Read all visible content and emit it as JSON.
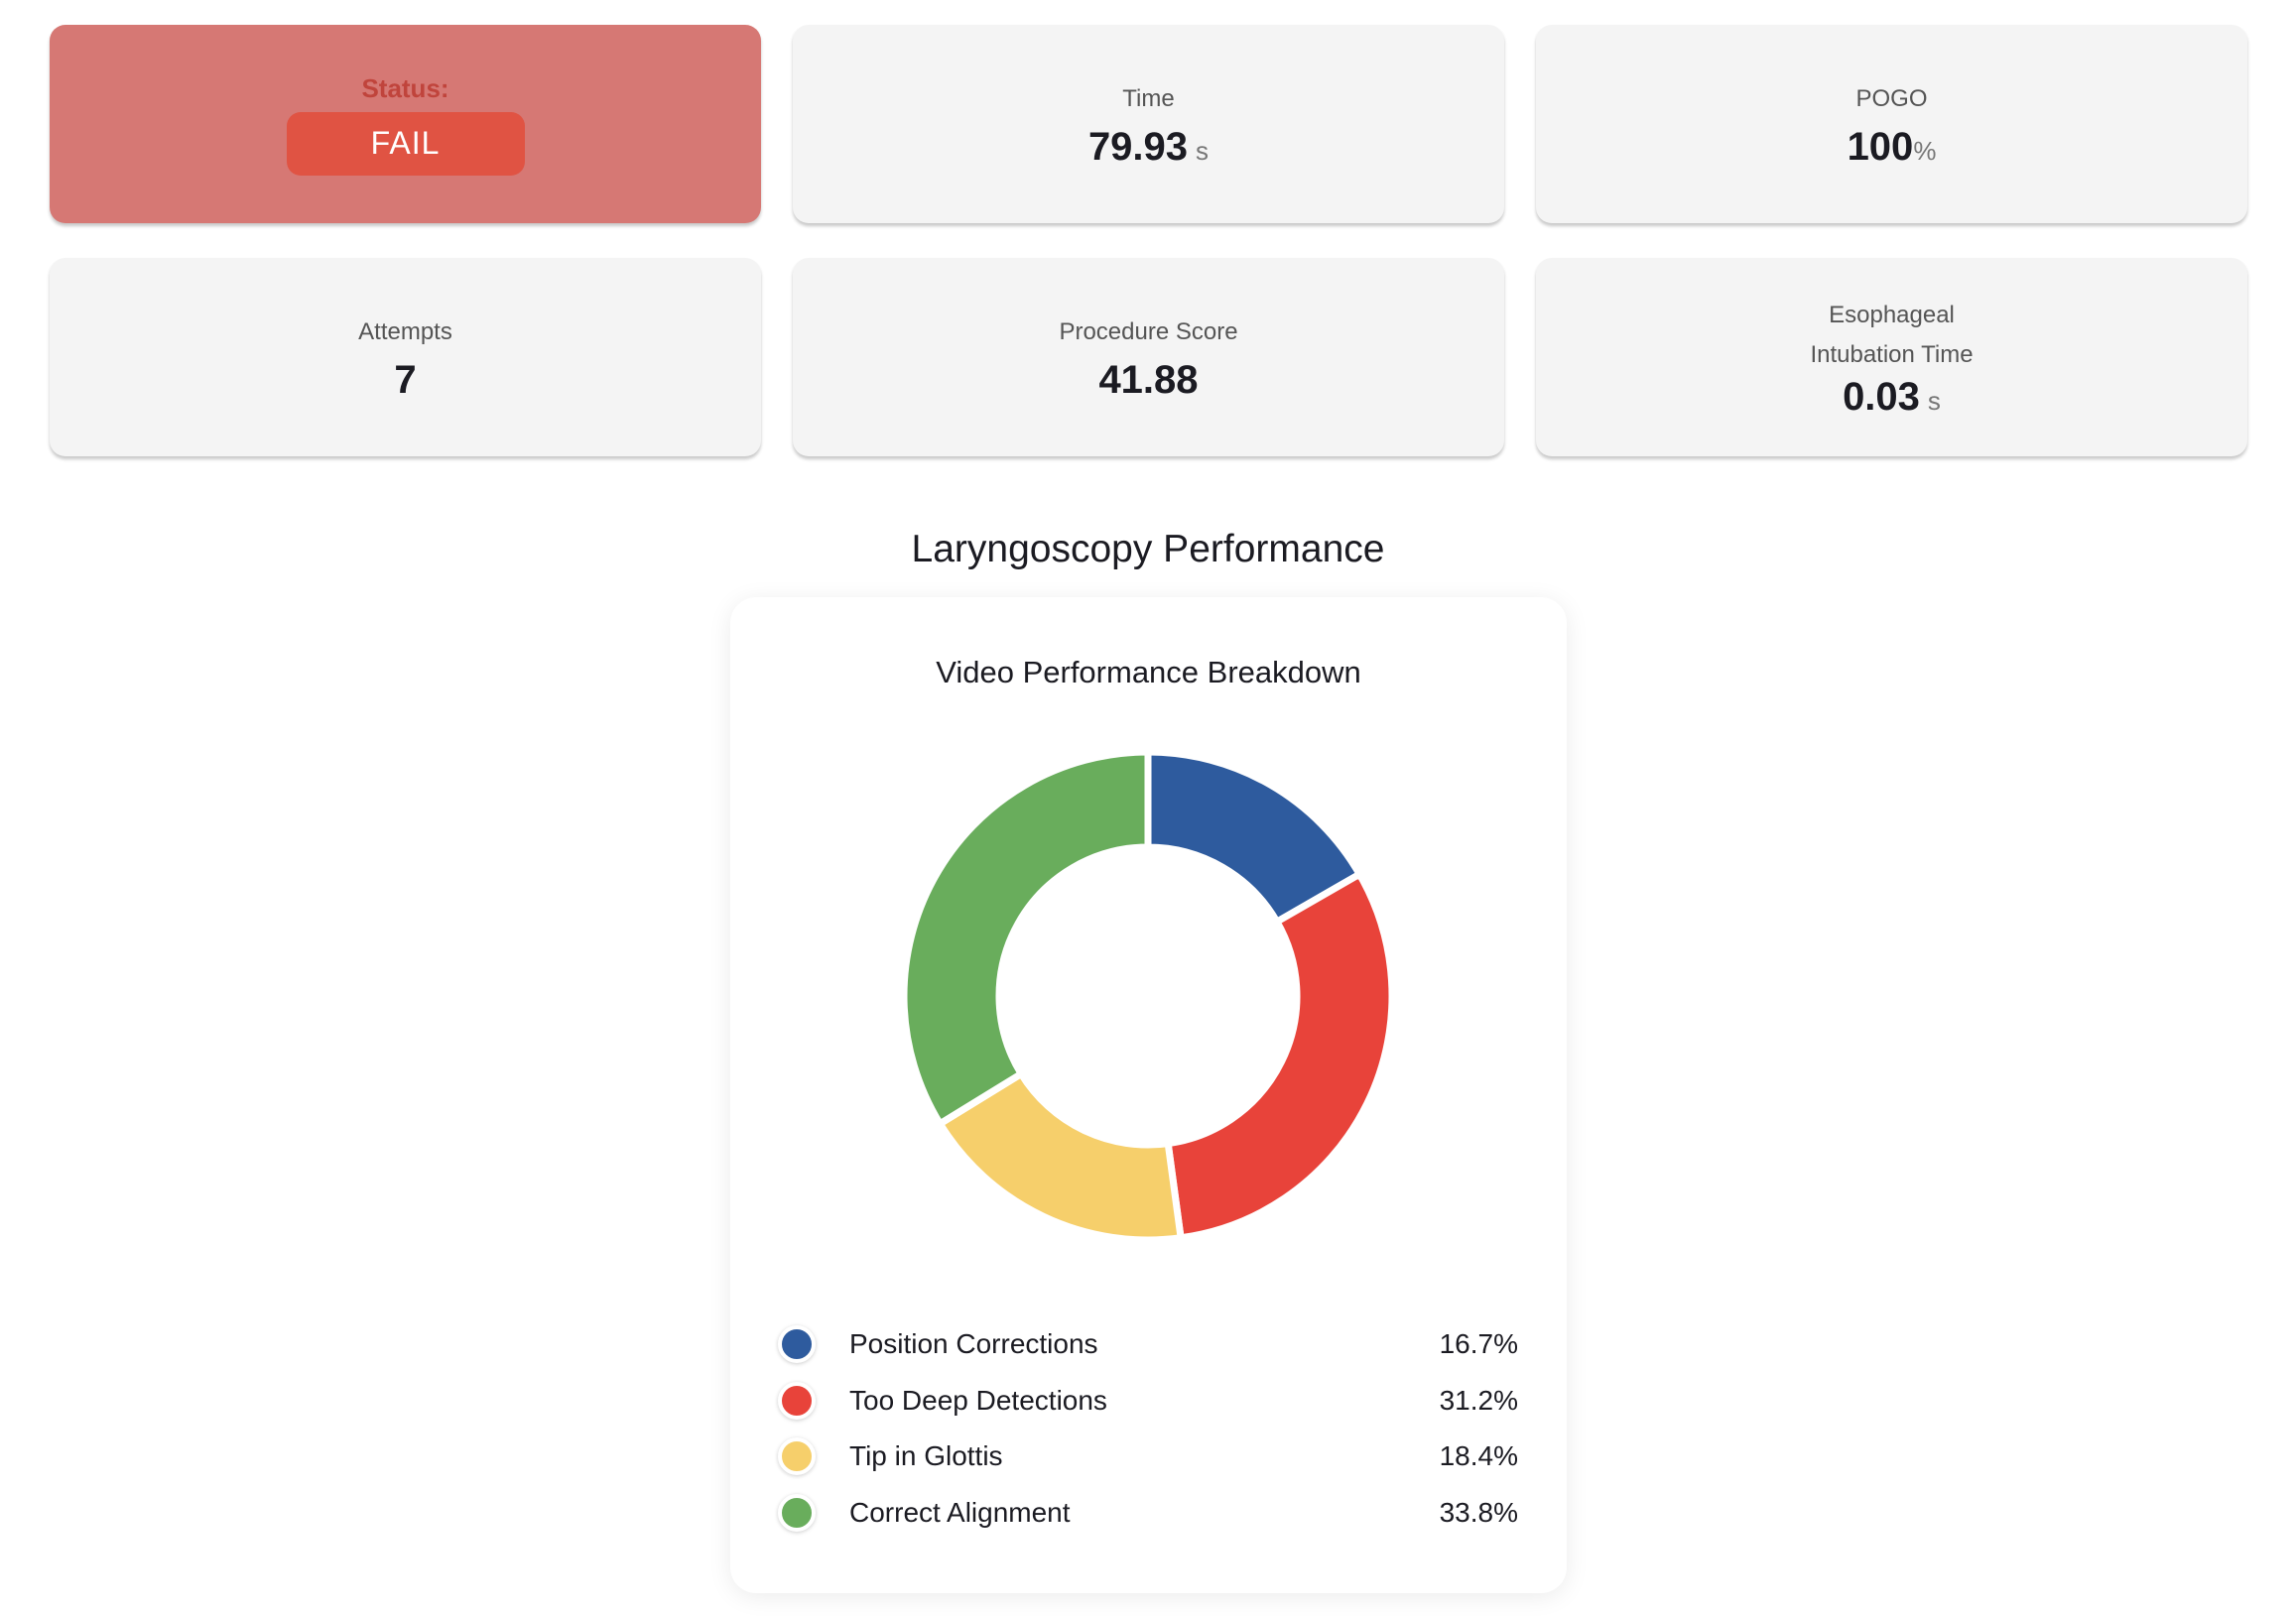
{
  "cards": {
    "status": {
      "label": "Status:",
      "value": "FAIL"
    },
    "time": {
      "label": "Time",
      "value": "79.93",
      "unit": "s"
    },
    "pogo": {
      "label": "POGO",
      "value": "100",
      "unit": "%"
    },
    "attempts": {
      "label": "Attempts",
      "value": "7"
    },
    "procedure_score": {
      "label": "Procedure Score",
      "value": "41.88"
    },
    "esophageal": {
      "label_line1": "Esophageal",
      "label_line2": "Intubation Time",
      "value": "0.03",
      "unit": "s"
    }
  },
  "section_title": "Laryngoscopy Performance",
  "chart_data": {
    "type": "pie",
    "title": "Video Performance Breakdown",
    "donut": true,
    "legend_position": "bottom",
    "categories": [
      "Position Corrections",
      "Too Deep Detections",
      "Tip in Glottis",
      "Correct Alignment"
    ],
    "values": [
      16.7,
      31.2,
      18.4,
      33.8
    ],
    "labels": [
      "16.7%",
      "31.2%",
      "18.4%",
      "33.8%"
    ],
    "colors": [
      "#2e5b9e",
      "#e8433a",
      "#f6cf6b",
      "#69ad5c"
    ]
  }
}
